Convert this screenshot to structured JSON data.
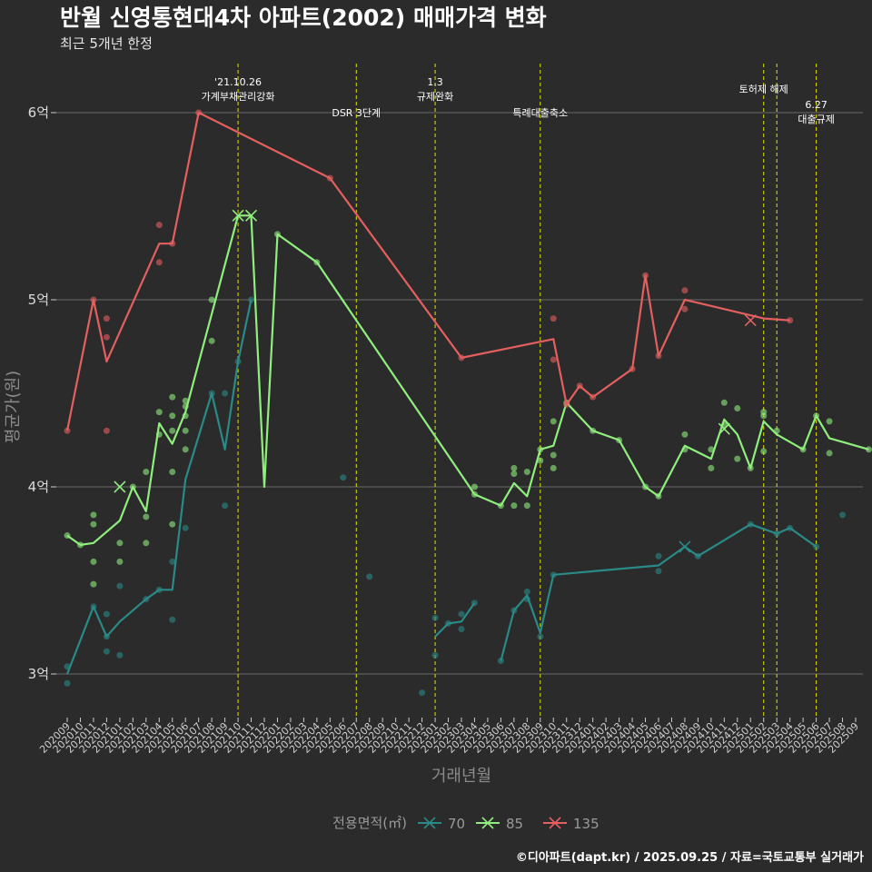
{
  "title": "반월 신영통현대4차 아파트(2002) 매매가격 변화",
  "subtitle": "최근 5개년 한정",
  "caption": "©디아파트(dapt.kr) / 2025.09.25 / 자료=국토교통부 실거래가",
  "chart_data": {
    "type": "line",
    "xlabel": "거래년월",
    "ylabel": "평균가(원)",
    "ylim": [
      2.75,
      6.3
    ],
    "y_ticks": [
      {
        "value": 3,
        "label": "3억"
      },
      {
        "value": 4,
        "label": "4억"
      },
      {
        "value": 5,
        "label": "5억"
      },
      {
        "value": 6,
        "label": "6억"
      }
    ],
    "grid": true,
    "categories": [
      "202009",
      "202010",
      "202011",
      "202012",
      "202101",
      "202102",
      "202103",
      "202104",
      "202105",
      "202106",
      "202107",
      "202108",
      "202109",
      "202110",
      "202111",
      "202112",
      "202201",
      "202202",
      "202203",
      "202204",
      "202205",
      "202206",
      "202207",
      "202208",
      "202209",
      "202210",
      "202211",
      "202212",
      "202301",
      "202302",
      "202303",
      "202304",
      "202305",
      "202306",
      "202307",
      "202308",
      "202309",
      "202310",
      "202311",
      "202312",
      "202401",
      "202402",
      "202403",
      "202404",
      "202405",
      "202406",
      "202407",
      "202408",
      "202409",
      "202410",
      "202411",
      "202412",
      "202501",
      "202502",
      "202503",
      "202504",
      "202505",
      "202506",
      "202507",
      "202508",
      "202509"
    ],
    "legend": {
      "title": "전용면적(㎡)",
      "position": "bottom"
    },
    "events": [
      {
        "x": "202110",
        "lines": [
          "'21.10.26",
          "가계부채관리강화"
        ]
      },
      {
        "x": "202207",
        "lines": [
          "DSR 3단계"
        ]
      },
      {
        "x": "202301",
        "lines": [
          "1.3",
          "규제완화"
        ]
      },
      {
        "x": "202309",
        "lines": [
          "특례대출축소"
        ]
      },
      {
        "x": "202502",
        "lines": [
          "토허제 해제"
        ]
      },
      {
        "x": "202503",
        "lines": []
      },
      {
        "x": "202506",
        "lines": [
          "6.27",
          "대출규제"
        ]
      }
    ],
    "series": [
      {
        "name": "70",
        "color": "#2a8a87",
        "line": [
          [
            "202009",
            3.0
          ],
          [
            "202011",
            3.36
          ],
          [
            "202012",
            3.2
          ],
          [
            "202101",
            3.28
          ],
          [
            "202103",
            3.4
          ],
          [
            "202104",
            3.45
          ],
          [
            "202105",
            3.45
          ],
          [
            "202106",
            4.04
          ],
          [
            "202108",
            4.5
          ],
          [
            "202109",
            4.2
          ],
          [
            "202110",
            4.67
          ],
          [
            "202111",
            5.0
          ],
          null,
          [
            "202301",
            3.2
          ],
          [
            "202302",
            3.27
          ],
          [
            "202303",
            3.28
          ],
          [
            "202304",
            3.38
          ],
          null,
          [
            "202306",
            3.07
          ],
          [
            "202307",
            3.34
          ],
          [
            "202308",
            3.42
          ],
          [
            "202309",
            3.22
          ],
          [
            "202310",
            3.53
          ],
          [
            "202406",
            3.58
          ],
          [
            "202408",
            3.68
          ],
          [
            "202409",
            3.63
          ],
          [
            "202501",
            3.8
          ],
          [
            "202503",
            3.75
          ],
          [
            "202504",
            3.78
          ],
          [
            "202506",
            3.68
          ]
        ],
        "points": [
          [
            "202009",
            3.04
          ],
          [
            "202009",
            2.95
          ],
          [
            "202011",
            3.36
          ],
          [
            "202012",
            3.32
          ],
          [
            "202012",
            3.2
          ],
          [
            "202012",
            3.12
          ],
          [
            "202101",
            3.47
          ],
          [
            "202101",
            3.1
          ],
          [
            "202103",
            3.4
          ],
          [
            "202104",
            3.45
          ],
          [
            "202105",
            3.6
          ],
          [
            "202105",
            3.29
          ],
          [
            "202106",
            3.78
          ],
          [
            "202108",
            4.5
          ],
          [
            "202109",
            4.5
          ],
          [
            "202109",
            3.9
          ],
          [
            "202110",
            4.67
          ],
          [
            "202111",
            5.0
          ],
          [
            "202206",
            4.05
          ],
          [
            "202208",
            3.52
          ],
          [
            "202212",
            2.9
          ],
          [
            "202301",
            3.3
          ],
          [
            "202301",
            3.1
          ],
          [
            "202302",
            3.27
          ],
          [
            "202303",
            3.32
          ],
          [
            "202303",
            3.24
          ],
          [
            "202304",
            3.38
          ],
          [
            "202306",
            3.07
          ],
          [
            "202307",
            3.34
          ],
          [
            "202308",
            3.44
          ],
          [
            "202308",
            3.4
          ],
          [
            "202309",
            3.2
          ],
          [
            "202310",
            3.53
          ],
          [
            "202406",
            3.55
          ],
          [
            "202406",
            3.63
          ],
          [
            "202409",
            3.63
          ],
          [
            "202501",
            3.8
          ],
          [
            "202503",
            3.75
          ],
          [
            "202504",
            3.78
          ],
          [
            "202506",
            3.68
          ],
          [
            "202508",
            3.85
          ]
        ],
        "markers_x": [
          [
            "202408",
            3.68
          ]
        ]
      },
      {
        "name": "85",
        "color": "#90ee7e",
        "line": [
          [
            "202009",
            3.74
          ],
          [
            "202010",
            3.69
          ],
          [
            "202011",
            3.7
          ],
          [
            "202101",
            3.82
          ],
          [
            "202102",
            4.0
          ],
          [
            "202103",
            3.87
          ],
          [
            "202104",
            4.34
          ],
          [
            "202105",
            4.23
          ],
          [
            "202106",
            4.4
          ],
          [
            "202110",
            5.45
          ],
          [
            "202111",
            5.45
          ],
          [
            "202112",
            4.0
          ],
          [
            "202201",
            5.35
          ],
          [
            "202204",
            5.2
          ],
          [
            "202304",
            3.96
          ],
          [
            "202306",
            3.9
          ],
          [
            "202307",
            4.02
          ],
          [
            "202308",
            3.95
          ],
          [
            "202309",
            4.2
          ],
          [
            "202310",
            4.22
          ],
          [
            "202311",
            4.45
          ],
          [
            "202401",
            4.3
          ],
          [
            "202403",
            4.25
          ],
          [
            "202405",
            4.0
          ],
          [
            "202406",
            3.95
          ],
          [
            "202408",
            4.22
          ],
          [
            "202410",
            4.15
          ],
          [
            "202411",
            4.36
          ],
          [
            "202412",
            4.28
          ],
          [
            "202501",
            4.1
          ],
          [
            "202502",
            4.35
          ],
          [
            "202503",
            4.28
          ],
          [
            "202505",
            4.2
          ],
          [
            "202506",
            4.38
          ],
          [
            "202507",
            4.26
          ],
          [
            "202510",
            4.2
          ]
        ],
        "points": [
          [
            "202009",
            3.74
          ],
          [
            "202010",
            3.69
          ],
          [
            "202011",
            3.85
          ],
          [
            "202011",
            3.8
          ],
          [
            "202011",
            3.6
          ],
          [
            "202011",
            3.48
          ],
          [
            "202101",
            3.7
          ],
          [
            "202101",
            3.6
          ],
          [
            "202102",
            4.0
          ],
          [
            "202103",
            4.08
          ],
          [
            "202103",
            3.84
          ],
          [
            "202103",
            3.7
          ],
          [
            "202104",
            4.4
          ],
          [
            "202104",
            4.28
          ],
          [
            "202105",
            4.48
          ],
          [
            "202105",
            4.38
          ],
          [
            "202105",
            4.3
          ],
          [
            "202105",
            4.08
          ],
          [
            "202105",
            3.8
          ],
          [
            "202106",
            4.46
          ],
          [
            "202106",
            4.43
          ],
          [
            "202106",
            4.38
          ],
          [
            "202106",
            4.3
          ],
          [
            "202106",
            4.2
          ],
          [
            "202108",
            5.0
          ],
          [
            "202108",
            4.78
          ],
          [
            "202201",
            5.35
          ],
          [
            "202204",
            5.2
          ],
          [
            "202304",
            4.0
          ],
          [
            "202304",
            3.96
          ],
          [
            "202306",
            3.9
          ],
          [
            "202307",
            4.1
          ],
          [
            "202307",
            4.07
          ],
          [
            "202307",
            3.9
          ],
          [
            "202308",
            4.08
          ],
          [
            "202308",
            3.9
          ],
          [
            "202309",
            4.2
          ],
          [
            "202309",
            4.14
          ],
          [
            "202310",
            4.35
          ],
          [
            "202310",
            4.17
          ],
          [
            "202310",
            4.1
          ],
          [
            "202311",
            4.45
          ],
          [
            "202401",
            4.3
          ],
          [
            "202403",
            4.25
          ],
          [
            "202405",
            4.0
          ],
          [
            "202406",
            3.95
          ],
          [
            "202408",
            4.28
          ],
          [
            "202408",
            4.2
          ],
          [
            "202410",
            4.2
          ],
          [
            "202410",
            4.1
          ],
          [
            "202411",
            4.45
          ],
          [
            "202411",
            4.33
          ],
          [
            "202412",
            4.42
          ],
          [
            "202412",
            4.15
          ],
          [
            "202501",
            4.1
          ],
          [
            "202502",
            4.4
          ],
          [
            "202502",
            4.38
          ],
          [
            "202502",
            4.19
          ],
          [
            "202503",
            4.3
          ],
          [
            "202505",
            4.2
          ],
          [
            "202506",
            4.38
          ],
          [
            "202507",
            4.35
          ],
          [
            "202507",
            4.18
          ],
          [
            "202510",
            4.2
          ]
        ],
        "markers_x": [
          [
            "202101",
            4.0
          ],
          [
            "202110",
            5.45
          ],
          [
            "202111",
            5.45
          ],
          [
            "202411",
            4.31
          ]
        ]
      },
      {
        "name": "135",
        "color": "#e45f5f",
        "line": [
          [
            "202009",
            4.3
          ],
          [
            "202011",
            5.0
          ],
          [
            "202012",
            4.67
          ],
          [
            "202104",
            5.3
          ],
          [
            "202105",
            5.3
          ],
          [
            "202107",
            6.0
          ],
          [
            "202205",
            5.65
          ],
          [
            "202303",
            4.69
          ],
          [
            "202310",
            4.79
          ],
          [
            "202311",
            4.44
          ],
          [
            "202312",
            4.54
          ],
          [
            "202401",
            4.48
          ],
          [
            "202404",
            4.63
          ],
          [
            "202405",
            5.13
          ],
          [
            "202406",
            4.7
          ],
          [
            "202408",
            5.0
          ],
          [
            "202502",
            4.9
          ],
          [
            "202504",
            4.89
          ]
        ],
        "points": [
          [
            "202009",
            4.3
          ],
          [
            "202011",
            5.0
          ],
          [
            "202012",
            4.9
          ],
          [
            "202012",
            4.8
          ],
          [
            "202012",
            4.3
          ],
          [
            "202104",
            5.4
          ],
          [
            "202104",
            5.2
          ],
          [
            "202105",
            5.3
          ],
          [
            "202107",
            6.0
          ],
          [
            "202205",
            5.65
          ],
          [
            "202303",
            4.69
          ],
          [
            "202310",
            4.9
          ],
          [
            "202310",
            4.68
          ],
          [
            "202311",
            4.44
          ],
          [
            "202312",
            4.54
          ],
          [
            "202401",
            4.48
          ],
          [
            "202404",
            4.63
          ],
          [
            "202405",
            5.13
          ],
          [
            "202406",
            4.7
          ],
          [
            "202408",
            5.05
          ],
          [
            "202408",
            4.95
          ],
          [
            "202504",
            4.89
          ]
        ],
        "markers_x": [
          [
            "202501",
            4.89
          ]
        ]
      }
    ]
  }
}
